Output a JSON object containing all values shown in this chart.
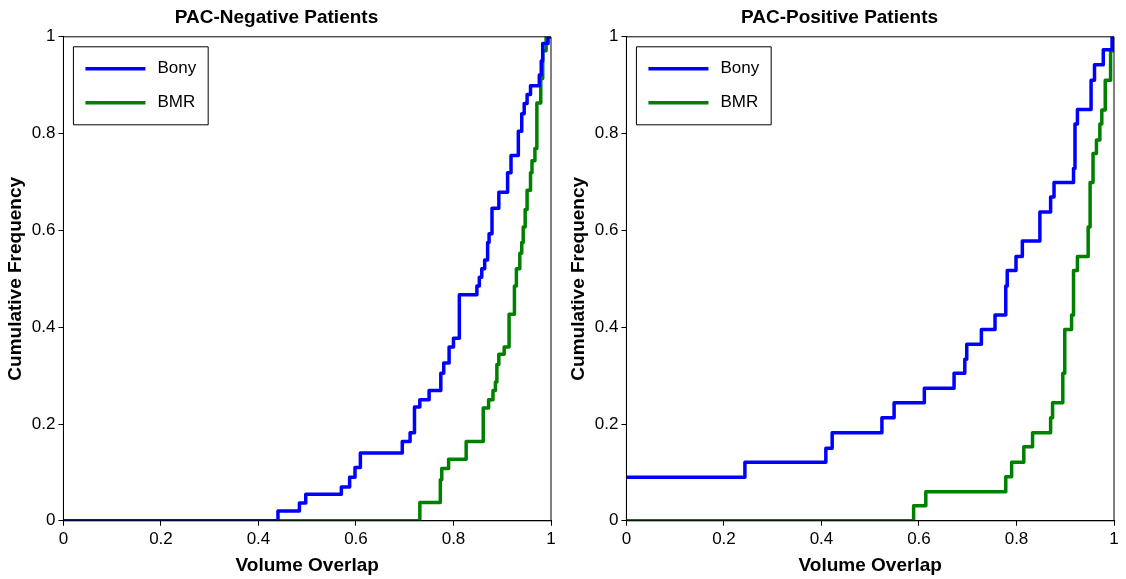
{
  "chart_data": [
    {
      "type": "step",
      "title": "PAC-Negative Patients",
      "xlabel": "Volume Overlap",
      "ylabel": "Cumulative Frequency",
      "xlim": [
        0,
        1
      ],
      "xticks": [
        0,
        0.2,
        0.4,
        0.6,
        0.8,
        1
      ],
      "ylim": [
        0,
        1
      ],
      "yticks": [
        0,
        0.2,
        0.4,
        0.6,
        0.8,
        1
      ],
      "grid": false,
      "legend": "top left",
      "series": [
        {
          "name": "Bony",
          "color": "#0000ff",
          "x": [
            0,
            0.44,
            0.484,
            0.497,
            0.57,
            0.587,
            0.598,
            0.609,
            0.695,
            0.711,
            0.72,
            0.731,
            0.75,
            0.774,
            0.78,
            0.791,
            0.8,
            0.812,
            0.848,
            0.853,
            0.858,
            0.864,
            0.87,
            0.873,
            0.879,
            0.893,
            0.911,
            0.918,
            0.933,
            0.94,
            0.945,
            0.951,
            0.958,
            0.976,
            0.98,
            0.983,
            0.994,
            1
          ],
          "values": [
            0,
            0.02,
            0.037,
            0.055,
            0.07,
            0.09,
            0.11,
            0.14,
            0.164,
            0.182,
            0.235,
            0.25,
            0.269,
            0.305,
            0.326,
            0.359,
            0.377,
            0.467,
            0.485,
            0.503,
            0.521,
            0.539,
            0.575,
            0.593,
            0.646,
            0.679,
            0.719,
            0.755,
            0.805,
            0.841,
            0.862,
            0.881,
            0.899,
            0.921,
            0.95,
            0.986,
            1,
            1
          ]
        },
        {
          "name": "BMR",
          "color": "#008000",
          "x": [
            0,
            0.731,
            0.773,
            0.776,
            0.79,
            0.826,
            0.861,
            0.872,
            0.881,
            0.886,
            0.889,
            0.893,
            0.904,
            0.914,
            0.925,
            0.929,
            0.936,
            0.94,
            0.943,
            0.947,
            0.951,
            0.958,
            0.961,
            0.967,
            0.971,
            0.979,
            0.983,
            0.99,
            1
          ],
          "values": [
            0,
            0.038,
            0.085,
            0.108,
            0.127,
            0.164,
            0.233,
            0.25,
            0.269,
            0.287,
            0.323,
            0.344,
            0.359,
            0.427,
            0.485,
            0.521,
            0.553,
            0.575,
            0.607,
            0.643,
            0.683,
            0.719,
            0.744,
            0.769,
            0.863,
            0.914,
            0.971,
            1,
            1
          ]
        }
      ]
    },
    {
      "type": "step",
      "title": "PAC-Positive Patients",
      "xlabel": "Volume Overlap",
      "ylabel": "Cumulative Frequency",
      "xlim": [
        0,
        1
      ],
      "xticks": [
        0,
        0.2,
        0.4,
        0.6,
        0.8,
        1
      ],
      "ylim": [
        0,
        1
      ],
      "yticks": [
        0,
        0.2,
        0.4,
        0.6,
        0.8,
        1
      ],
      "grid": false,
      "legend": "top left",
      "series": [
        {
          "name": "Bony",
          "color": "#0000ff",
          "x": [
            0,
            0.243,
            0.409,
            0.422,
            0.524,
            0.549,
            0.611,
            0.672,
            0.694,
            0.698,
            0.728,
            0.756,
            0.778,
            0.781,
            0.799,
            0.812,
            0.848,
            0.87,
            0.877,
            0.917,
            0.92,
            0.925,
            0.953,
            0.96,
            0.978,
            0.996,
            1
          ],
          "values": [
            0.09,
            0.121,
            0.15,
            0.182,
            0.213,
            0.244,
            0.274,
            0.305,
            0.334,
            0.365,
            0.395,
            0.425,
            0.485,
            0.517,
            0.546,
            0.578,
            0.638,
            0.669,
            0.699,
            0.728,
            0.82,
            0.85,
            0.91,
            0.942,
            0.973,
            1,
            1
          ]
        },
        {
          "name": "BMR",
          "color": "#008000",
          "x": [
            0,
            0.589,
            0.614,
            0.778,
            0.79,
            0.815,
            0.833,
            0.87,
            0.874,
            0.895,
            0.899,
            0.913,
            0.917,
            0.925,
            0.947,
            0.951,
            0.957,
            0.964,
            0.971,
            0.975,
            0.982,
            0.993,
            1
          ],
          "values": [
            0,
            0.031,
            0.06,
            0.091,
            0.121,
            0.153,
            0.182,
            0.213,
            0.244,
            0.305,
            0.395,
            0.425,
            0.517,
            0.546,
            0.607,
            0.699,
            0.759,
            0.787,
            0.82,
            0.849,
            0.91,
            0.971,
            1
          ]
        }
      ]
    }
  ]
}
